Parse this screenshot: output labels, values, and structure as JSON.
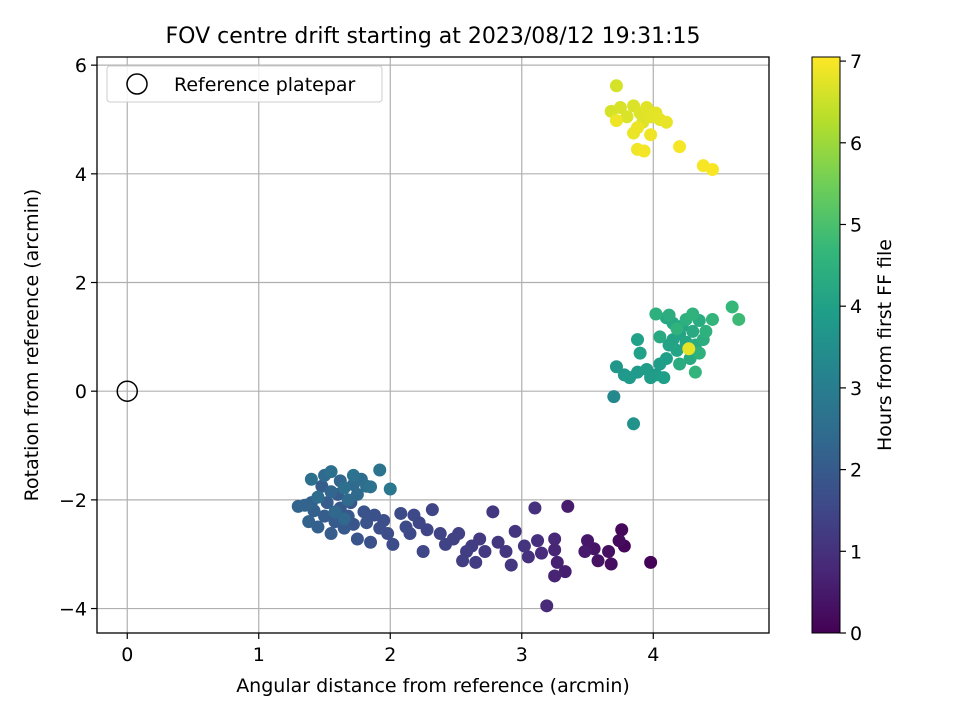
{
  "chart_data": {
    "type": "scatter",
    "title": "FOV centre drift starting at 2023/08/12 19:31:15",
    "xlabel": "Angular distance from reference (arcmin)",
    "ylabel": "Rotation from reference (arcmin)",
    "xlim": [
      -0.23,
      4.88
    ],
    "ylim": [
      -4.45,
      6.15
    ],
    "xticks": [
      "0",
      "1",
      "2",
      "3",
      "4"
    ],
    "yticks": [
      "−4",
      "−2",
      "0",
      "2",
      "4",
      "6"
    ],
    "xtick_values": [
      0,
      1,
      2,
      3,
      4
    ],
    "ytick_values": [
      -4,
      -2,
      0,
      2,
      4,
      6
    ],
    "grid": true,
    "legend": {
      "placement": "top-left",
      "entries": [
        "Reference platepar"
      ]
    },
    "reference_point": {
      "x": 0,
      "y": 0
    },
    "colorbar": {
      "label": "Hours from first FF file",
      "colormap": "viridis",
      "range": [
        0,
        7.05
      ],
      "ticks": [
        "0",
        "1",
        "2",
        "3",
        "4",
        "5",
        "6",
        "7"
      ],
      "tick_values": [
        0,
        1,
        2,
        3,
        4,
        5,
        6,
        7
      ],
      "colors": [
        "#440154",
        "#482878",
        "#3e4a89",
        "#31688e",
        "#26828e",
        "#1f9e89",
        "#35b779",
        "#6ece58",
        "#b5de2b",
        "#fde725"
      ]
    },
    "points": [
      {
        "x": 3.98,
        "y": -3.15,
        "h": 0.05
      },
      {
        "x": 3.78,
        "y": -2.85,
        "h": 0.1
      },
      {
        "x": 3.76,
        "y": -2.55,
        "h": 0.15
      },
      {
        "x": 3.74,
        "y": -2.75,
        "h": 0.2
      },
      {
        "x": 3.68,
        "y": -3.18,
        "h": 0.25
      },
      {
        "x": 3.66,
        "y": -2.95,
        "h": 0.3
      },
      {
        "x": 3.58,
        "y": -3.12,
        "h": 0.35
      },
      {
        "x": 3.55,
        "y": -2.9,
        "h": 0.4
      },
      {
        "x": 3.5,
        "y": -2.75,
        "h": 0.45
      },
      {
        "x": 3.48,
        "y": -2.95,
        "h": 0.5
      },
      {
        "x": 3.35,
        "y": -2.12,
        "h": 0.55
      },
      {
        "x": 3.33,
        "y": -3.32,
        "h": 0.6
      },
      {
        "x": 3.27,
        "y": -3.15,
        "h": 0.65
      },
      {
        "x": 3.25,
        "y": -3.4,
        "h": 0.7
      },
      {
        "x": 3.25,
        "y": -2.92,
        "h": 0.75
      },
      {
        "x": 3.25,
        "y": -2.72,
        "h": 0.8
      },
      {
        "x": 3.19,
        "y": -3.95,
        "h": 0.85
      },
      {
        "x": 3.15,
        "y": -2.98,
        "h": 0.9
      },
      {
        "x": 3.12,
        "y": -2.75,
        "h": 0.95
      },
      {
        "x": 3.1,
        "y": -2.15,
        "h": 1.0
      },
      {
        "x": 3.05,
        "y": -3.05,
        "h": 1.0
      },
      {
        "x": 3.02,
        "y": -2.85,
        "h": 1.05
      },
      {
        "x": 2.95,
        "y": -2.58,
        "h": 1.05
      },
      {
        "x": 2.92,
        "y": -3.2,
        "h": 1.1
      },
      {
        "x": 2.88,
        "y": -2.95,
        "h": 1.1
      },
      {
        "x": 2.82,
        "y": -2.78,
        "h": 1.15
      },
      {
        "x": 2.78,
        "y": -2.22,
        "h": 1.15
      },
      {
        "x": 2.72,
        "y": -2.95,
        "h": 1.2
      },
      {
        "x": 2.68,
        "y": -2.72,
        "h": 1.2
      },
      {
        "x": 2.65,
        "y": -3.15,
        "h": 1.25
      },
      {
        "x": 2.62,
        "y": -2.85,
        "h": 1.25
      },
      {
        "x": 2.58,
        "y": -2.95,
        "h": 1.3
      },
      {
        "x": 2.55,
        "y": -3.12,
        "h": 1.3
      },
      {
        "x": 2.52,
        "y": -2.62,
        "h": 1.35
      },
      {
        "x": 2.48,
        "y": -2.72,
        "h": 1.35
      },
      {
        "x": 2.42,
        "y": -2.82,
        "h": 1.4
      },
      {
        "x": 2.38,
        "y": -2.62,
        "h": 1.4
      },
      {
        "x": 2.32,
        "y": -2.18,
        "h": 1.45
      },
      {
        "x": 2.28,
        "y": -2.55,
        "h": 1.45
      },
      {
        "x": 2.25,
        "y": -2.95,
        "h": 1.5
      },
      {
        "x": 2.22,
        "y": -2.42,
        "h": 1.5
      },
      {
        "x": 2.18,
        "y": -2.28,
        "h": 1.55
      },
      {
        "x": 2.15,
        "y": -2.62,
        "h": 1.55
      },
      {
        "x": 2.12,
        "y": -2.5,
        "h": 1.6
      },
      {
        "x": 2.08,
        "y": -2.25,
        "h": 1.6
      },
      {
        "x": 2.02,
        "y": -2.82,
        "h": 1.65
      },
      {
        "x": 1.98,
        "y": -2.62,
        "h": 1.65
      },
      {
        "x": 1.95,
        "y": -2.38,
        "h": 1.7
      },
      {
        "x": 1.92,
        "y": -2.52,
        "h": 1.7
      },
      {
        "x": 1.88,
        "y": -2.28,
        "h": 1.75
      },
      {
        "x": 1.85,
        "y": -2.78,
        "h": 1.75
      },
      {
        "x": 1.82,
        "y": -2.42,
        "h": 1.8
      },
      {
        "x": 1.8,
        "y": -2.22,
        "h": 1.8
      },
      {
        "x": 1.75,
        "y": -2.72,
        "h": 1.85
      },
      {
        "x": 1.72,
        "y": -2.45,
        "h": 1.85
      },
      {
        "x": 1.7,
        "y": -2.05,
        "h": 1.9
      },
      {
        "x": 1.68,
        "y": -2.3,
        "h": 1.9
      },
      {
        "x": 1.65,
        "y": -2.52,
        "h": 1.95
      },
      {
        "x": 1.62,
        "y": -2.15,
        "h": 1.95
      },
      {
        "x": 1.6,
        "y": -1.9,
        "h": 2.0
      },
      {
        "x": 1.58,
        "y": -2.4,
        "h": 2.0
      },
      {
        "x": 1.55,
        "y": -2.62,
        "h": 2.05
      },
      {
        "x": 1.52,
        "y": -2.05,
        "h": 2.05
      },
      {
        "x": 1.5,
        "y": -2.3,
        "h": 2.1
      },
      {
        "x": 1.48,
        "y": -1.75,
        "h": 2.1
      },
      {
        "x": 1.45,
        "y": -2.5,
        "h": 2.15
      },
      {
        "x": 1.42,
        "y": -2.2,
        "h": 2.15
      },
      {
        "x": 1.4,
        "y": -2.05,
        "h": 2.2
      },
      {
        "x": 1.38,
        "y": -2.4,
        "h": 2.2
      },
      {
        "x": 1.35,
        "y": -2.1,
        "h": 2.25
      },
      {
        "x": 1.3,
        "y": -2.12,
        "h": 2.25
      },
      {
        "x": 1.55,
        "y": -1.85,
        "h": 2.3
      },
      {
        "x": 1.62,
        "y": -1.65,
        "h": 2.3
      },
      {
        "x": 1.58,
        "y": -2.22,
        "h": 2.35
      },
      {
        "x": 1.65,
        "y": -2.35,
        "h": 2.35
      },
      {
        "x": 1.72,
        "y": -1.72,
        "h": 2.4
      },
      {
        "x": 1.5,
        "y": -1.55,
        "h": 2.4
      },
      {
        "x": 1.68,
        "y": -2.0,
        "h": 2.45
      },
      {
        "x": 1.75,
        "y": -1.9,
        "h": 2.45
      },
      {
        "x": 1.45,
        "y": -1.95,
        "h": 2.5
      },
      {
        "x": 1.78,
        "y": -1.62,
        "h": 2.5
      },
      {
        "x": 1.65,
        "y": -1.78,
        "h": 2.55
      },
      {
        "x": 1.82,
        "y": -1.75,
        "h": 2.55
      },
      {
        "x": 1.4,
        "y": -1.62,
        "h": 2.6
      },
      {
        "x": 1.55,
        "y": -1.48,
        "h": 2.6
      },
      {
        "x": 1.72,
        "y": -1.55,
        "h": 2.65
      },
      {
        "x": 1.85,
        "y": -1.76,
        "h": 2.65
      },
      {
        "x": 1.92,
        "y": -1.45,
        "h": 2.7
      },
      {
        "x": 2.0,
        "y": -1.8,
        "h": 2.8
      },
      {
        "x": 3.7,
        "y": -0.1,
        "h": 3.3
      },
      {
        "x": 3.85,
        "y": -0.6,
        "h": 3.6
      },
      {
        "x": 3.72,
        "y": 0.45,
        "h": 3.7
      },
      {
        "x": 3.78,
        "y": 0.3,
        "h": 3.75
      },
      {
        "x": 3.82,
        "y": 0.25,
        "h": 3.8
      },
      {
        "x": 3.88,
        "y": 0.35,
        "h": 3.8
      },
      {
        "x": 3.95,
        "y": 0.4,
        "h": 3.85
      },
      {
        "x": 3.98,
        "y": 0.25,
        "h": 3.85
      },
      {
        "x": 4.02,
        "y": 0.3,
        "h": 3.9
      },
      {
        "x": 4.05,
        "y": 0.5,
        "h": 3.9
      },
      {
        "x": 4.08,
        "y": 0.25,
        "h": 3.95
      },
      {
        "x": 4.1,
        "y": 0.6,
        "h": 3.95
      },
      {
        "x": 3.88,
        "y": 0.95,
        "h": 4.0
      },
      {
        "x": 3.9,
        "y": 0.7,
        "h": 4.0
      },
      {
        "x": 4.12,
        "y": 0.85,
        "h": 4.05
      },
      {
        "x": 4.15,
        "y": 0.95,
        "h": 4.05
      },
      {
        "x": 4.18,
        "y": 0.75,
        "h": 4.1
      },
      {
        "x": 4.2,
        "y": 1.05,
        "h": 4.1
      },
      {
        "x": 4.22,
        "y": 1.2,
        "h": 4.15
      },
      {
        "x": 4.25,
        "y": 0.9,
        "h": 4.15
      },
      {
        "x": 4.15,
        "y": 1.25,
        "h": 4.2
      },
      {
        "x": 4.1,
        "y": 1.35,
        "h": 4.2
      },
      {
        "x": 4.05,
        "y": 1.0,
        "h": 4.25
      },
      {
        "x": 4.3,
        "y": 1.1,
        "h": 4.25
      },
      {
        "x": 4.28,
        "y": 0.6,
        "h": 4.3
      },
      {
        "x": 4.32,
        "y": 0.85,
        "h": 4.3
      },
      {
        "x": 4.2,
        "y": 0.5,
        "h": 4.35
      },
      {
        "x": 4.35,
        "y": 1.3,
        "h": 4.35
      },
      {
        "x": 4.38,
        "y": 0.95,
        "h": 4.4
      },
      {
        "x": 4.12,
        "y": 1.4,
        "h": 4.4
      },
      {
        "x": 4.02,
        "y": 1.42,
        "h": 4.45
      },
      {
        "x": 4.25,
        "y": 1.32,
        "h": 4.45
      },
      {
        "x": 4.35,
        "y": 0.7,
        "h": 4.5
      },
      {
        "x": 4.4,
        "y": 1.1,
        "h": 4.5
      },
      {
        "x": 4.3,
        "y": 1.42,
        "h": 4.55
      },
      {
        "x": 4.18,
        "y": 1.15,
        "h": 4.55
      },
      {
        "x": 4.45,
        "y": 1.32,
        "h": 4.6
      },
      {
        "x": 4.32,
        "y": 0.35,
        "h": 4.6
      },
      {
        "x": 4.6,
        "y": 1.55,
        "h": 4.7
      },
      {
        "x": 4.65,
        "y": 1.32,
        "h": 4.8
      },
      {
        "x": 4.27,
        "y": 0.78,
        "h": 6.8
      },
      {
        "x": 3.72,
        "y": 5.62,
        "h": 6.6
      },
      {
        "x": 3.68,
        "y": 5.15,
        "h": 6.62
      },
      {
        "x": 3.75,
        "y": 5.22,
        "h": 6.64
      },
      {
        "x": 3.8,
        "y": 5.05,
        "h": 6.66
      },
      {
        "x": 3.85,
        "y": 5.25,
        "h": 6.68
      },
      {
        "x": 3.9,
        "y": 5.12,
        "h": 6.7
      },
      {
        "x": 3.92,
        "y": 4.95,
        "h": 6.72
      },
      {
        "x": 3.95,
        "y": 5.22,
        "h": 6.74
      },
      {
        "x": 3.98,
        "y": 5.05,
        "h": 6.76
      },
      {
        "x": 4.02,
        "y": 5.12,
        "h": 6.78
      },
      {
        "x": 4.05,
        "y": 5.0,
        "h": 6.8
      },
      {
        "x": 4.1,
        "y": 4.95,
        "h": 6.82
      },
      {
        "x": 3.85,
        "y": 4.75,
        "h": 6.84
      },
      {
        "x": 3.88,
        "y": 4.85,
        "h": 6.86
      },
      {
        "x": 3.72,
        "y": 4.98,
        "h": 6.88
      },
      {
        "x": 3.98,
        "y": 4.72,
        "h": 6.9
      },
      {
        "x": 3.88,
        "y": 4.45,
        "h": 6.92
      },
      {
        "x": 3.93,
        "y": 4.42,
        "h": 6.94
      },
      {
        "x": 4.2,
        "y": 4.5,
        "h": 6.96
      },
      {
        "x": 4.38,
        "y": 4.15,
        "h": 6.98
      },
      {
        "x": 4.45,
        "y": 4.08,
        "h": 7.0
      }
    ]
  }
}
